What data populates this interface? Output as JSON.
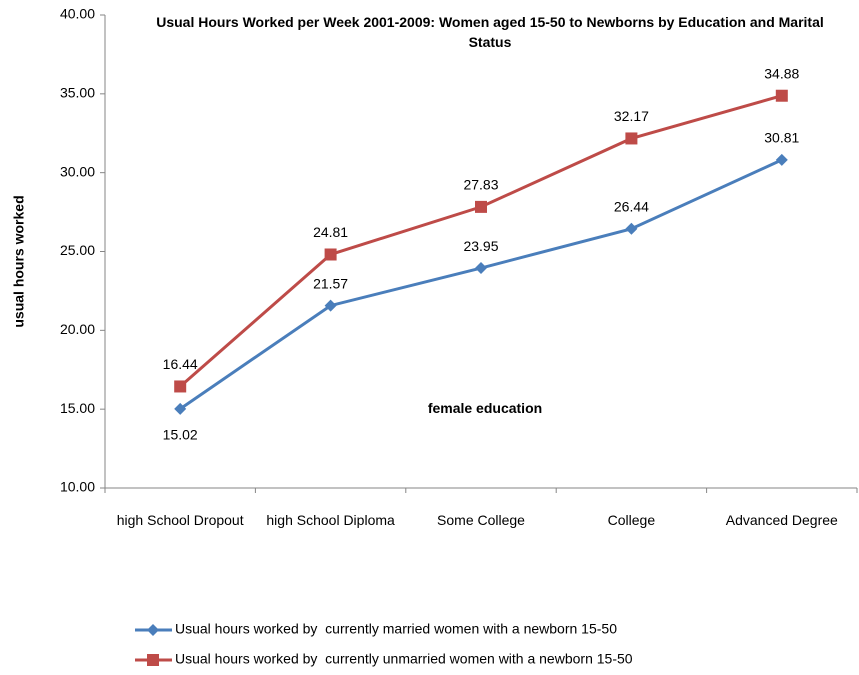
{
  "chart_data": {
    "type": "line",
    "title": "Usual Hours Worked per Week 2001-2009: Women aged 15-50 to Newborns by Education and Marital Status",
    "x_label": "female education",
    "y_label": "usual hours worked",
    "categories": [
      "high School Dropout",
      "high School Diploma",
      "Some College",
      "College",
      "Advanced Degree"
    ],
    "series": [
      {
        "name": "Usual hours worked by  currently married women with a newborn 15-50",
        "color": "#4a7ebb",
        "marker": "diamond",
        "values": [
          15.02,
          21.57,
          23.95,
          26.44,
          30.81
        ]
      },
      {
        "name": "Usual hours worked by  currently unmarried women with a newborn 15-50",
        "color": "#be4b48",
        "marker": "square",
        "values": [
          16.44,
          24.81,
          27.83,
          32.17,
          34.88
        ]
      }
    ],
    "ylim": [
      10,
      40
    ],
    "yticks": [
      {
        "value": 10,
        "label": "10.00"
      },
      {
        "value": 15,
        "label": "15.00"
      },
      {
        "value": 20,
        "label": "20.00"
      },
      {
        "value": 25,
        "label": "25.00"
      },
      {
        "value": 30,
        "label": "30.00"
      },
      {
        "value": 35,
        "label": "35.00"
      },
      {
        "value": 40,
        "label": "40.00"
      }
    ],
    "grid": false,
    "legend": "bottom"
  }
}
